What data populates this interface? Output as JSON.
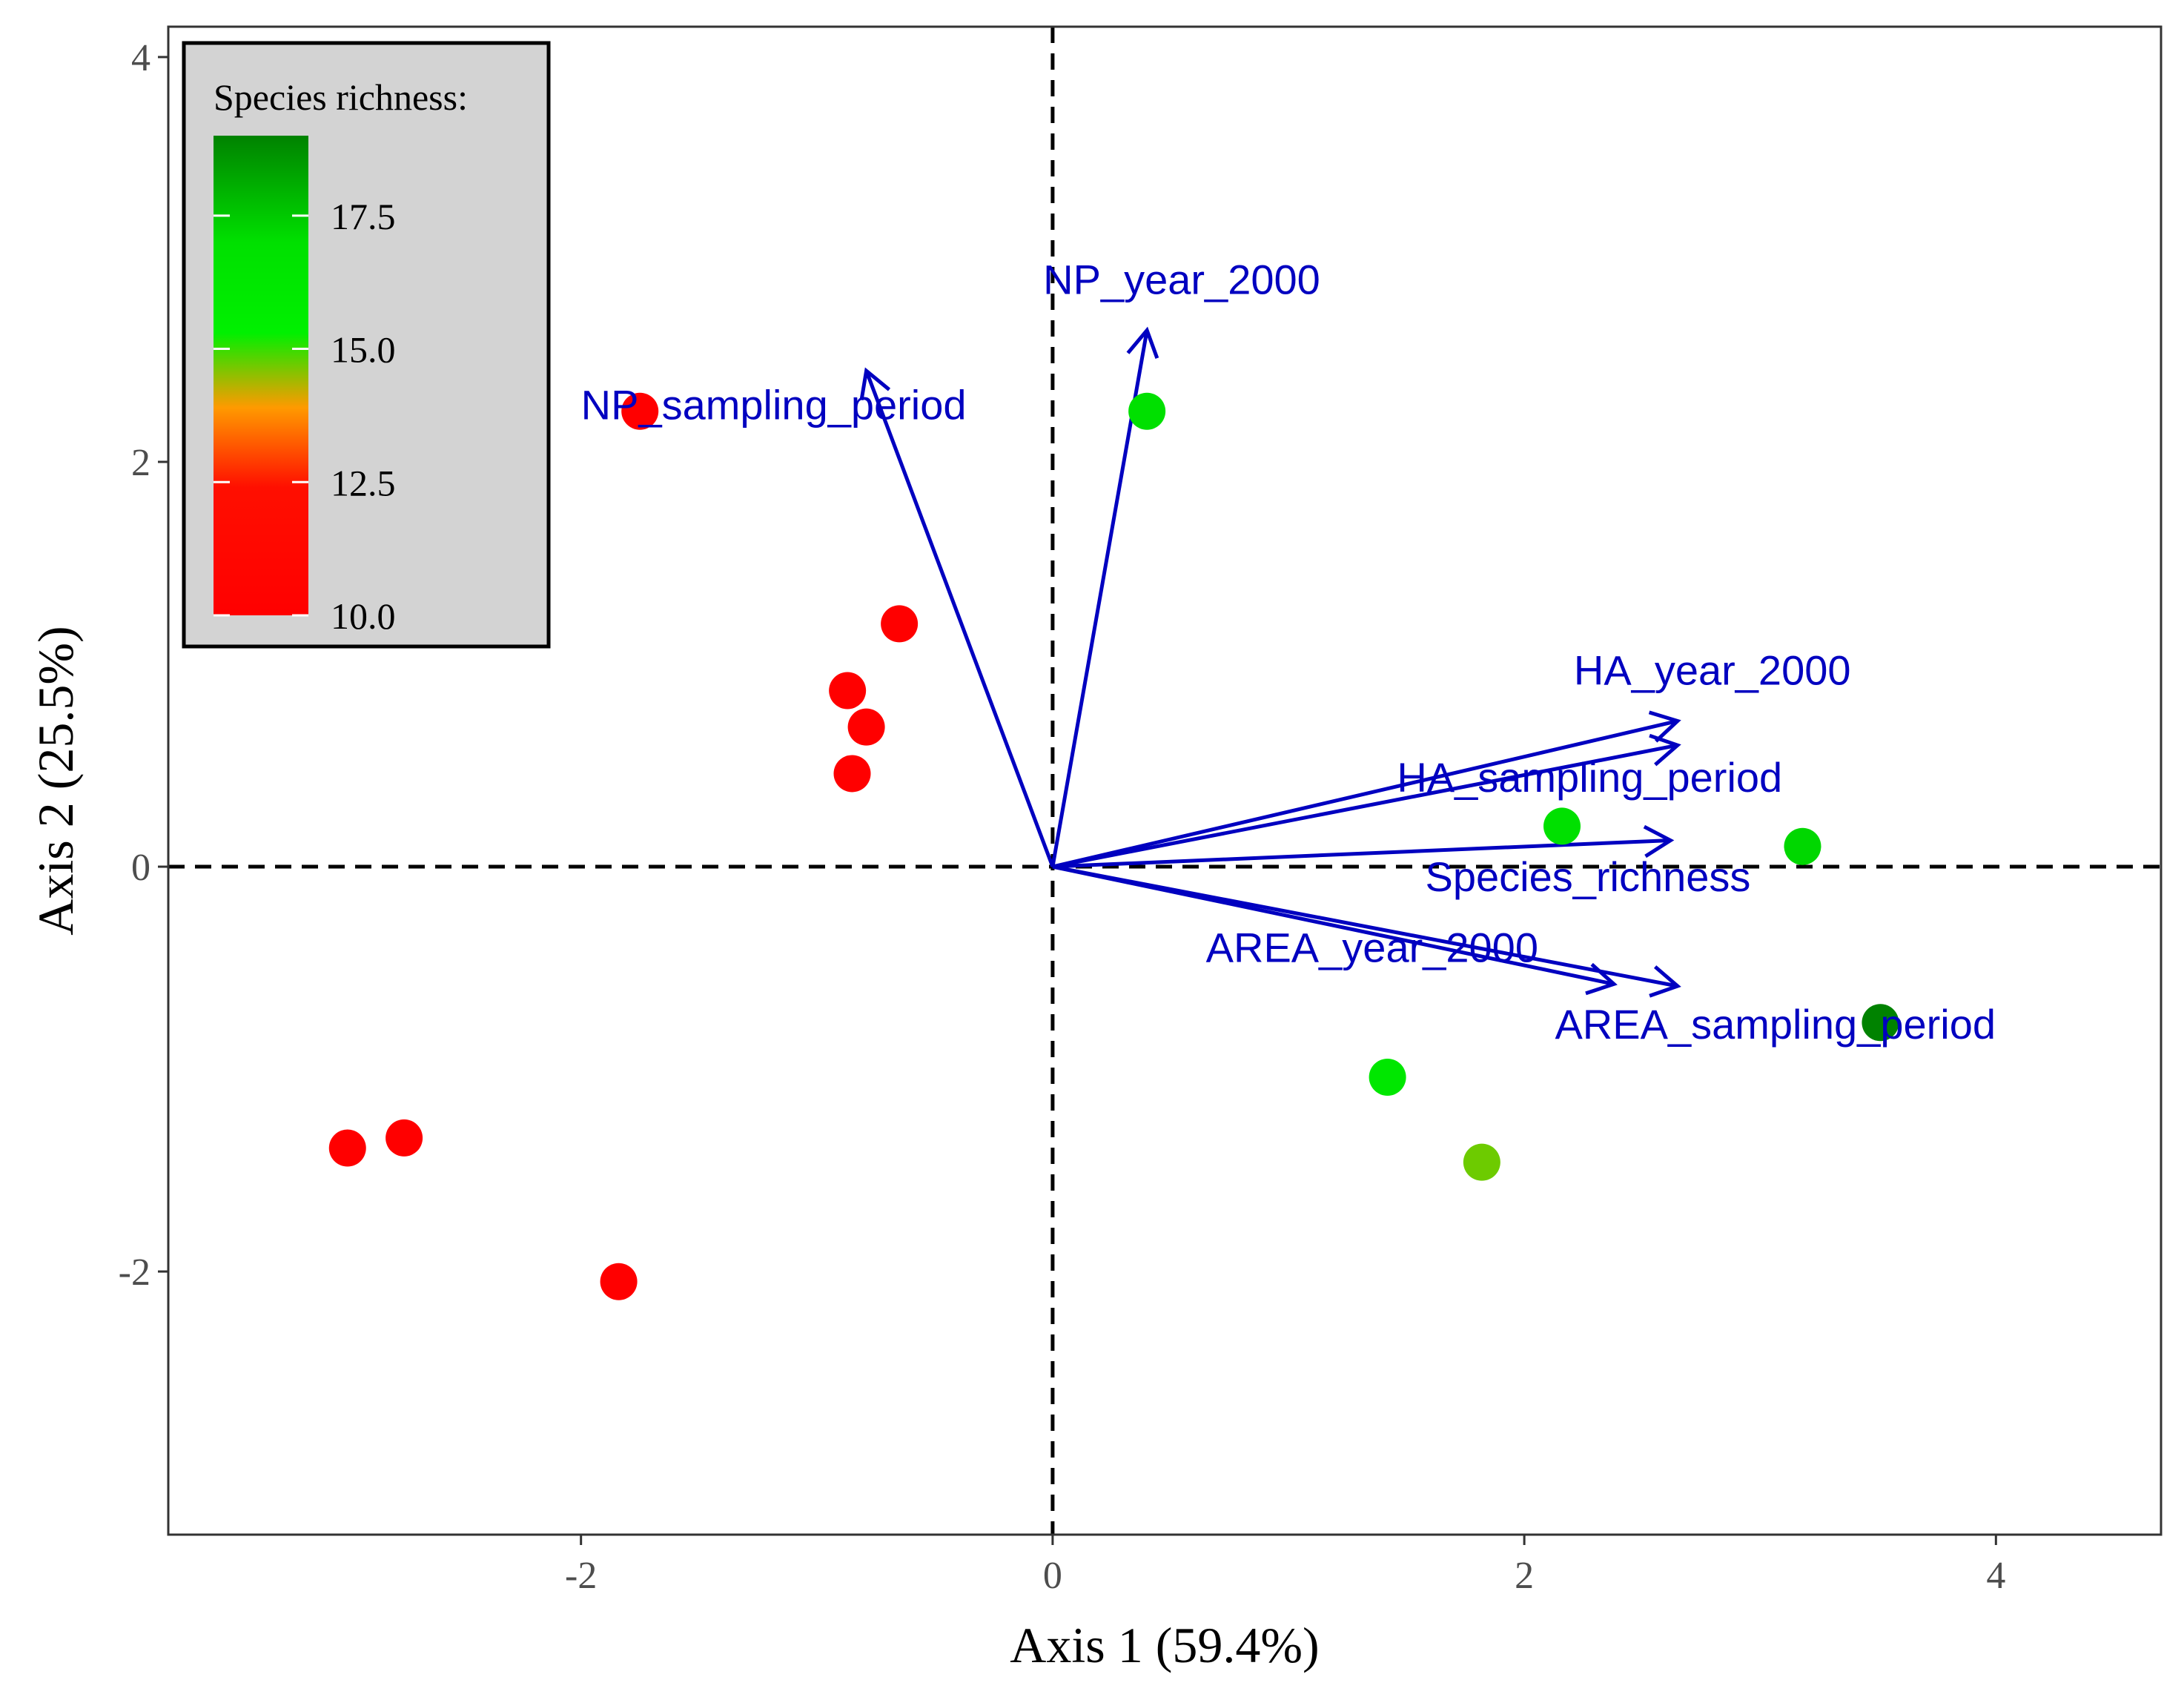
{
  "chart_data": {
    "type": "scatter",
    "subtype": "pca-biplot",
    "xlabel": "Axis 1 (59.4%)",
    "ylabel": "Axis 2 (25.5%)",
    "xlim": [
      -3.75,
      4.7
    ],
    "ylim": [
      -3.3,
      4.15
    ],
    "x_ticks": [
      -2,
      0,
      2,
      4
    ],
    "x_tick_labels": [
      "-2",
      "0",
      "2",
      "4"
    ],
    "y_ticks": [
      -2,
      0,
      2,
      4
    ],
    "y_tick_labels": [
      "-2",
      "0",
      "2",
      "4"
    ],
    "reference_lines": {
      "x": 0,
      "y": 0,
      "style": "dashed"
    },
    "color_scale": {
      "title": "Species richness:",
      "min": 10.0,
      "max": 19.0,
      "ticks": [
        10.0,
        12.5,
        15.0,
        17.5
      ],
      "tick_labels": [
        "10.0",
        "12.5",
        "15.0",
        "17.5"
      ],
      "stops": [
        {
          "value": 10.0,
          "color": "#ff0000"
        },
        {
          "value": 12.4,
          "color": "#ff0f00"
        },
        {
          "value": 13.9,
          "color": "#ff9a00"
        },
        {
          "value": 15.3,
          "color": "#00f000"
        },
        {
          "value": 17.0,
          "color": "#00e000"
        },
        {
          "value": 19.0,
          "color": "#008200"
        }
      ]
    },
    "points": [
      {
        "x": 0.4,
        "y": 2.25,
        "richness": 17.0
      },
      {
        "x": -1.75,
        "y": 2.25,
        "richness": 10.0
      },
      {
        "x": -0.65,
        "y": 1.2,
        "richness": 10.0
      },
      {
        "x": -0.87,
        "y": 0.87,
        "richness": 10.0
      },
      {
        "x": -0.79,
        "y": 0.69,
        "richness": 10.0
      },
      {
        "x": -0.85,
        "y": 0.46,
        "richness": 10.0
      },
      {
        "x": 2.16,
        "y": 0.2,
        "richness": 17.0
      },
      {
        "x": 3.18,
        "y": 0.1,
        "richness": 17.2
      },
      {
        "x": 3.51,
        "y": -0.77,
        "richness": 19.0
      },
      {
        "x": 1.42,
        "y": -1.04,
        "richness": 16.3
      },
      {
        "x": 1.82,
        "y": -1.46,
        "richness": 14.7
      },
      {
        "x": -2.99,
        "y": -1.39,
        "richness": 10.0
      },
      {
        "x": -2.75,
        "y": -1.34,
        "richness": 10.0
      },
      {
        "x": -1.84,
        "y": -2.05,
        "richness": 10.0
      }
    ],
    "vectors": [
      {
        "label": "NP_sampling_period",
        "x": -0.79,
        "y": 2.45,
        "label_x": -2.0,
        "label_y": 2.21,
        "anchor": "start"
      },
      {
        "label": "NP_year_2000",
        "x": 0.4,
        "y": 2.65,
        "label_x": -0.04,
        "label_y": 2.83,
        "anchor": "start"
      },
      {
        "label": "HA_year_2000",
        "x": 2.65,
        "y": 0.72,
        "label_x": 2.21,
        "label_y": 0.9,
        "anchor": "start"
      },
      {
        "label": "HA_sampling_period",
        "x": 2.65,
        "y": 0.6,
        "label_x": 1.46,
        "label_y": 0.37,
        "anchor": "start"
      },
      {
        "label": "Species_richness",
        "x": 2.62,
        "y": 0.13,
        "label_x": 1.58,
        "label_y": -0.12,
        "anchor": "start"
      },
      {
        "label": "AREA_year_2000",
        "x": 2.38,
        "y": -0.58,
        "label_x": 0.65,
        "label_y": -0.47,
        "anchor": "start"
      },
      {
        "label": "AREA_sampling_period",
        "x": 2.65,
        "y": -0.59,
        "label_x": 2.13,
        "label_y": -0.85,
        "anchor": "start"
      }
    ],
    "colors": {
      "vector": "#0000c0",
      "axis": "#000000",
      "tick_text": "#4d4d4d",
      "legend_bg": "#d3d3d3"
    }
  }
}
